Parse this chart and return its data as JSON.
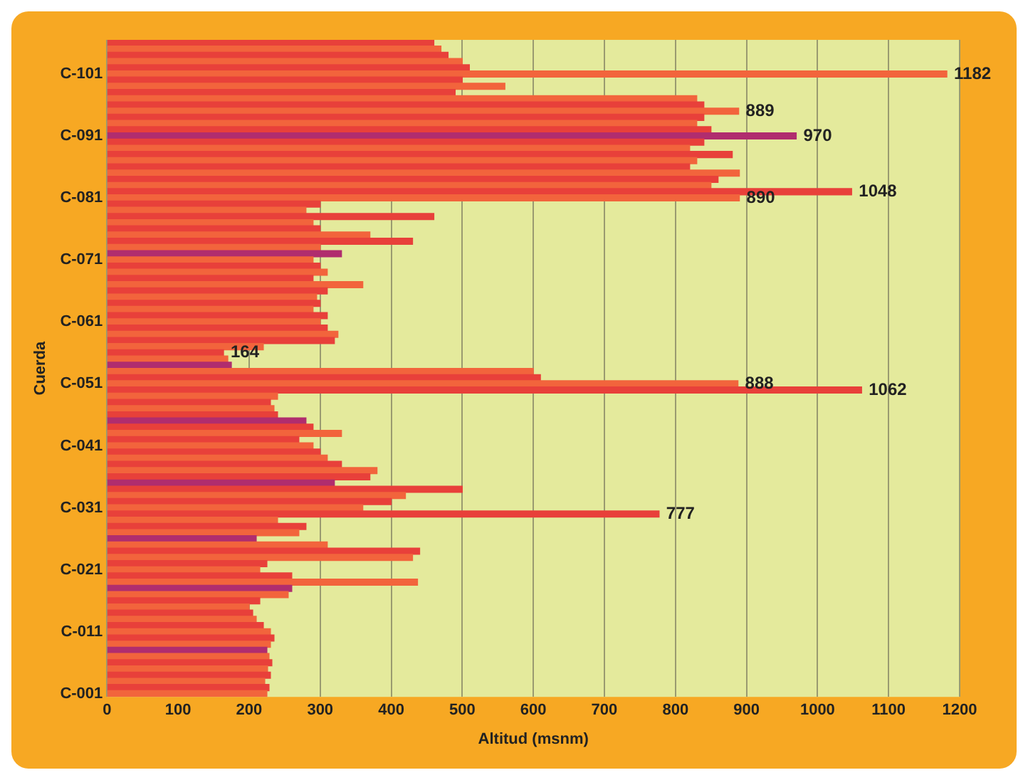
{
  "chart_data": {
    "type": "bar",
    "orientation": "horizontal",
    "xlabel": "Altitud (msnm)",
    "ylabel": "Cuerda",
    "categories": [
      null,
      null,
      null,
      null,
      null,
      "C-101",
      null,
      null,
      null,
      null,
      null,
      null,
      null,
      null,
      null,
      "C-091",
      null,
      null,
      null,
      null,
      null,
      null,
      null,
      null,
      null,
      "C-081",
      null,
      null,
      null,
      null,
      null,
      null,
      null,
      null,
      null,
      "C-071",
      null,
      null,
      null,
      null,
      null,
      null,
      null,
      null,
      null,
      "C-061",
      null,
      null,
      null,
      null,
      null,
      null,
      null,
      null,
      null,
      "C-051",
      null,
      null,
      null,
      null,
      null,
      null,
      null,
      null,
      null,
      "C-041",
      null,
      null,
      null,
      null,
      null,
      null,
      null,
      null,
      null,
      "C-031",
      null,
      null,
      null,
      null,
      null,
      null,
      null,
      null,
      null,
      "C-021",
      null,
      null,
      null,
      null,
      null,
      null,
      null,
      null,
      null,
      "C-011",
      null,
      null,
      null,
      null,
      null,
      null,
      null,
      null,
      null,
      "C-001"
    ],
    "values": [
      460,
      470,
      480,
      500,
      510,
      1182,
      500,
      560,
      490,
      830,
      840,
      889,
      840,
      830,
      850,
      970,
      840,
      820,
      880,
      830,
      820,
      890,
      860,
      850,
      1048,
      890,
      300,
      280,
      460,
      290,
      300,
      370,
      430,
      300,
      330,
      290,
      300,
      310,
      290,
      360,
      310,
      295,
      300,
      290,
      310,
      300,
      310,
      325,
      320,
      220,
      164,
      170,
      175,
      600,
      610,
      888,
      1062,
      240,
      230,
      235,
      240,
      280,
      290,
      330,
      270,
      290,
      300,
      310,
      330,
      380,
      370,
      320,
      500,
      420,
      400,
      360,
      777,
      240,
      280,
      270,
      210,
      310,
      440,
      430,
      225,
      215,
      260,
      437,
      260,
      255,
      215,
      200,
      205,
      210,
      220,
      230,
      235,
      230,
      225,
      228,
      232,
      226,
      230,
      222,
      228,
      225
    ],
    "value_labels": [
      null,
      null,
      null,
      null,
      null,
      "1182",
      null,
      null,
      null,
      null,
      null,
      "889",
      null,
      null,
      null,
      "970",
      null,
      null,
      null,
      null,
      null,
      null,
      null,
      null,
      "1048",
      "890",
      null,
      null,
      null,
      null,
      null,
      null,
      null,
      null,
      null,
      null,
      null,
      null,
      null,
      null,
      null,
      null,
      null,
      null,
      null,
      null,
      null,
      null,
      null,
      null,
      "164",
      null,
      null,
      null,
      null,
      "888",
      "1062",
      null,
      null,
      null,
      null,
      null,
      null,
      null,
      null,
      null,
      null,
      null,
      null,
      null,
      null,
      null,
      null,
      null,
      null,
      null,
      "777",
      null,
      null,
      null,
      null,
      null,
      null,
      null,
      null,
      null,
      null,
      null,
      null,
      null,
      null,
      null,
      null,
      null,
      null,
      null,
      null,
      null,
      null,
      null,
      null,
      null,
      null,
      null,
      null,
      null
    ],
    "colors": [
      "#e8403a",
      "#f2643c",
      "#e8403a",
      "#f2643c",
      "#e8403a",
      "#f2643c",
      "#e8403a",
      "#f2643c",
      "#e8403a",
      "#f2643c",
      "#e8403a",
      "#f2643c",
      "#e8403a",
      "#f2643c",
      "#e8403a",
      "#b02d6e",
      "#e8403a",
      "#f2643c",
      "#e8403a",
      "#f2643c",
      "#e8403a",
      "#f2643c",
      "#e8403a",
      "#f2643c",
      "#e8403a",
      "#f2643c",
      "#e8403a",
      "#f2643c",
      "#e8403a",
      "#f2643c",
      "#e8403a",
      "#f2643c",
      "#e8403a",
      "#f2643c",
      "#b02d6e",
      "#f2643c",
      "#e8403a",
      "#f2643c",
      "#e8403a",
      "#f2643c",
      "#e8403a",
      "#f2643c",
      "#e8403a",
      "#f2643c",
      "#e8403a",
      "#f2643c",
      "#e8403a",
      "#f2643c",
      "#e8403a",
      "#f2643c",
      "#e8403a",
      "#f2643c",
      "#b02d6e",
      "#f2643c",
      "#e8403a",
      "#f2643c",
      "#e8403a",
      "#f2643c",
      "#e8403a",
      "#f2643c",
      "#e8403a",
      "#b02d6e",
      "#e8403a",
      "#f2643c",
      "#e8403a",
      "#f2643c",
      "#e8403a",
      "#f2643c",
      "#e8403a",
      "#f2643c",
      "#e8403a",
      "#b02d6e",
      "#e8403a",
      "#f2643c",
      "#e8403a",
      "#f2643c",
      "#e8403a",
      "#f2643c",
      "#e8403a",
      "#f2643c",
      "#b02d6e",
      "#f2643c",
      "#e8403a",
      "#f2643c",
      "#e8403a",
      "#f2643c",
      "#e8403a",
      "#f2643c",
      "#b02d6e",
      "#f2643c",
      "#e8403a",
      "#f2643c",
      "#e8403a",
      "#f2643c",
      "#e8403a",
      "#f2643c",
      "#e8403a",
      "#f2643c",
      "#b02d6e",
      "#f2643c",
      "#e8403a",
      "#f2643c",
      "#e8403a",
      "#f2643c",
      "#e8403a",
      "#f2643c"
    ],
    "xlim": [
      0,
      1200
    ],
    "xticks": [
      0,
      100,
      200,
      300,
      400,
      500,
      600,
      700,
      800,
      900,
      1000,
      1100,
      1200
    ],
    "grid": "x",
    "legend": false
  }
}
